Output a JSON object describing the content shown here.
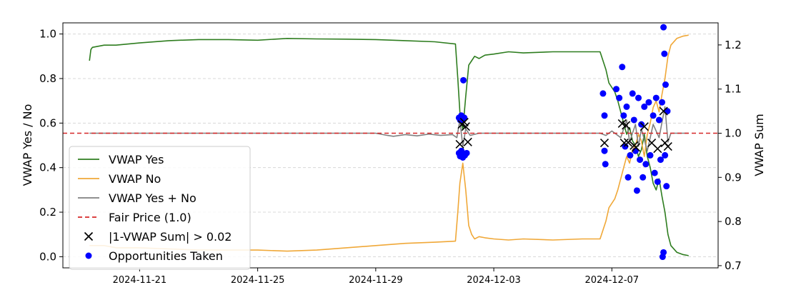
{
  "chart_data": {
    "type": "line",
    "title": "",
    "xlabel": "",
    "ylabel_left": "VWAP Yes / No",
    "ylabel_right": "VWAP Sum",
    "x_tick_labels": [
      "2024-11-21",
      "2024-11-25",
      "2024-11-29",
      "2024-12-03",
      "2024-12-07"
    ],
    "x_ticks_days": [
      0,
      4,
      8,
      12,
      16
    ],
    "x_domain_days": [
      -2.6,
      19.6
    ],
    "ylim_left": [
      -0.05,
      1.05
    ],
    "yticks_left": [
      0.0,
      0.2,
      0.4,
      0.6,
      0.8,
      1.0
    ],
    "ylim_right": [
      0.695,
      1.25
    ],
    "yticks_right": [
      0.7,
      0.8,
      0.9,
      1.0,
      1.1,
      1.2
    ],
    "grid": true,
    "legend_position": "lower-left",
    "colors": {
      "yes": "#2e7d1f",
      "no": "#f0a838",
      "sum": "#808080",
      "fair": "#d62728",
      "markers_x": "#000000",
      "markers_dot": "#0000ff"
    },
    "legend": [
      {
        "key": "yes",
        "label": "VWAP Yes",
        "style": "line"
      },
      {
        "key": "no",
        "label": "VWAP No",
        "style": "line"
      },
      {
        "key": "sum",
        "label": "VWAP Yes + No",
        "style": "line"
      },
      {
        "key": "fair",
        "label": "Fair Price (1.0)",
        "style": "dashed"
      },
      {
        "key": "markers_x",
        "label": "|1-VWAP Sum| > 0.02",
        "style": "x"
      },
      {
        "key": "markers_dot",
        "label": "Opportunities Taken",
        "style": "dot"
      }
    ],
    "series": [
      {
        "key": "yes",
        "axis": "left",
        "points": [
          [
            -1.7,
            0.88
          ],
          [
            -1.65,
            0.93
          ],
          [
            -1.6,
            0.94
          ],
          [
            -1.2,
            0.95
          ],
          [
            -0.8,
            0.95
          ],
          [
            0.0,
            0.96
          ],
          [
            1.0,
            0.97
          ],
          [
            2.0,
            0.975
          ],
          [
            3.0,
            0.975
          ],
          [
            4.0,
            0.972
          ],
          [
            5.0,
            0.98
          ],
          [
            6.0,
            0.978
          ],
          [
            7.0,
            0.977
          ],
          [
            8.0,
            0.975
          ],
          [
            9.0,
            0.97
          ],
          [
            10.0,
            0.965
          ],
          [
            10.7,
            0.955
          ],
          [
            10.78,
            0.8
          ],
          [
            10.85,
            0.65
          ],
          [
            10.95,
            0.57
          ],
          [
            11.05,
            0.72
          ],
          [
            11.15,
            0.86
          ],
          [
            11.25,
            0.88
          ],
          [
            11.35,
            0.9
          ],
          [
            11.5,
            0.89
          ],
          [
            11.7,
            0.905
          ],
          [
            12.0,
            0.91
          ],
          [
            12.5,
            0.92
          ],
          [
            13.0,
            0.915
          ],
          [
            14.0,
            0.92
          ],
          [
            15.0,
            0.92
          ],
          [
            15.6,
            0.92
          ],
          [
            15.7,
            0.88
          ],
          [
            15.8,
            0.84
          ],
          [
            15.9,
            0.78
          ],
          [
            16.0,
            0.76
          ],
          [
            16.1,
            0.74
          ],
          [
            16.2,
            0.7
          ],
          [
            16.3,
            0.65
          ],
          [
            16.4,
            0.6
          ],
          [
            16.5,
            0.55
          ],
          [
            16.6,
            0.58
          ],
          [
            16.7,
            0.52
          ],
          [
            16.8,
            0.5
          ],
          [
            16.9,
            0.45
          ],
          [
            17.0,
            0.48
          ],
          [
            17.1,
            0.55
          ],
          [
            17.2,
            0.45
          ],
          [
            17.3,
            0.4
          ],
          [
            17.4,
            0.33
          ],
          [
            17.5,
            0.3
          ],
          [
            17.6,
            0.35
          ],
          [
            17.7,
            0.27
          ],
          [
            17.8,
            0.2
          ],
          [
            17.9,
            0.1
          ],
          [
            18.0,
            0.05
          ],
          [
            18.2,
            0.02
          ],
          [
            18.4,
            0.01
          ],
          [
            18.6,
            0.005
          ]
        ]
      },
      {
        "key": "no",
        "axis": "left",
        "points": [
          [
            -1.7,
            0.05
          ],
          [
            -1.2,
            0.05
          ],
          [
            -0.8,
            0.04
          ],
          [
            0.0,
            0.04
          ],
          [
            1.0,
            0.035
          ],
          [
            2.0,
            0.03
          ],
          [
            3.0,
            0.03
          ],
          [
            4.0,
            0.03
          ],
          [
            5.0,
            0.025
          ],
          [
            6.0,
            0.03
          ],
          [
            7.0,
            0.04
          ],
          [
            8.0,
            0.05
          ],
          [
            9.0,
            0.06
          ],
          [
            10.0,
            0.065
          ],
          [
            10.7,
            0.07
          ],
          [
            10.78,
            0.2
          ],
          [
            10.85,
            0.33
          ],
          [
            10.95,
            0.42
          ],
          [
            11.05,
            0.3
          ],
          [
            11.15,
            0.14
          ],
          [
            11.25,
            0.1
          ],
          [
            11.35,
            0.08
          ],
          [
            11.5,
            0.09
          ],
          [
            11.7,
            0.085
          ],
          [
            12.0,
            0.08
          ],
          [
            12.5,
            0.075
          ],
          [
            13.0,
            0.08
          ],
          [
            14.0,
            0.075
          ],
          [
            15.0,
            0.08
          ],
          [
            15.6,
            0.08
          ],
          [
            15.7,
            0.12
          ],
          [
            15.8,
            0.16
          ],
          [
            15.9,
            0.22
          ],
          [
            16.0,
            0.24
          ],
          [
            16.1,
            0.26
          ],
          [
            16.2,
            0.3
          ],
          [
            16.3,
            0.35
          ],
          [
            16.4,
            0.4
          ],
          [
            16.5,
            0.45
          ],
          [
            16.6,
            0.42
          ],
          [
            16.7,
            0.48
          ],
          [
            16.8,
            0.5
          ],
          [
            16.9,
            0.55
          ],
          [
            17.0,
            0.52
          ],
          [
            17.1,
            0.45
          ],
          [
            17.2,
            0.55
          ],
          [
            17.3,
            0.6
          ],
          [
            17.4,
            0.67
          ],
          [
            17.5,
            0.7
          ],
          [
            17.6,
            0.65
          ],
          [
            17.7,
            0.73
          ],
          [
            17.8,
            0.8
          ],
          [
            17.9,
            0.9
          ],
          [
            18.0,
            0.95
          ],
          [
            18.2,
            0.98
          ],
          [
            18.4,
            0.99
          ],
          [
            18.6,
            0.995
          ]
        ]
      },
      {
        "key": "sum",
        "axis": "right",
        "points": [
          [
            -1.7,
            1.0
          ],
          [
            0.0,
            1.0
          ],
          [
            2.0,
            1.0
          ],
          [
            4.0,
            1.0
          ],
          [
            6.0,
            1.0
          ],
          [
            8.0,
            1.0
          ],
          [
            8.4,
            0.995
          ],
          [
            8.6,
            0.993
          ],
          [
            9.0,
            0.997
          ],
          [
            9.4,
            0.994
          ],
          [
            9.8,
            0.998
          ],
          [
            10.2,
            0.995
          ],
          [
            10.6,
            0.997
          ],
          [
            10.75,
            0.99
          ],
          [
            10.85,
            1.03
          ],
          [
            10.95,
            0.97
          ],
          [
            11.05,
            1.01
          ],
          [
            11.2,
            0.995
          ],
          [
            11.5,
            1.0
          ],
          [
            12.0,
            1.0
          ],
          [
            13.0,
            1.0
          ],
          [
            14.0,
            1.0
          ],
          [
            15.0,
            1.0
          ],
          [
            15.6,
            1.0
          ],
          [
            15.8,
            0.995
          ],
          [
            16.0,
            1.005
          ],
          [
            16.3,
            0.99
          ],
          [
            16.5,
            1.03
          ],
          [
            16.6,
            0.98
          ],
          [
            16.8,
            1.02
          ],
          [
            16.9,
            0.97
          ],
          [
            17.0,
            1.01
          ],
          [
            17.2,
            0.96
          ],
          [
            17.4,
            1.02
          ],
          [
            17.6,
            0.99
          ],
          [
            17.8,
            1.06
          ],
          [
            17.9,
            0.98
          ],
          [
            18.0,
            1.0
          ],
          [
            18.2,
            1.0
          ],
          [
            18.6,
            1.0
          ]
        ]
      }
    ],
    "fair_price": 1.0,
    "markers_threshold": [
      [
        10.85,
        0.975
      ],
      [
        10.92,
        1.02
      ],
      [
        11.0,
        1.025
      ],
      [
        11.05,
        1.015
      ],
      [
        11.12,
        0.98
      ],
      [
        15.75,
        0.978
      ],
      [
        16.35,
        1.022
      ],
      [
        16.42,
        0.978
      ],
      [
        16.48,
        1.018
      ],
      [
        16.55,
        0.979
      ],
      [
        16.75,
        0.972
      ],
      [
        16.82,
        0.968
      ],
      [
        17.1,
        1.015
      ],
      [
        17.35,
        0.978
      ],
      [
        17.55,
        0.965
      ],
      [
        17.75,
        1.05
      ],
      [
        17.8,
        0.978
      ],
      [
        17.9,
        0.97
      ]
    ],
    "markers_taken": [
      [
        10.82,
        1.035
      ],
      [
        10.86,
        1.03
      ],
      [
        10.9,
        1.04
      ],
      [
        10.95,
        1.03
      ],
      [
        11.0,
        1.035
      ],
      [
        10.82,
        0.955
      ],
      [
        10.86,
        0.948
      ],
      [
        10.9,
        0.96
      ],
      [
        10.95,
        0.945
      ],
      [
        10.97,
        1.12
      ],
      [
        11.02,
        0.95
      ],
      [
        11.08,
        0.955
      ],
      [
        15.7,
        1.09
      ],
      [
        15.75,
        1.04
      ],
      [
        15.75,
        0.96
      ],
      [
        15.78,
        0.93
      ],
      [
        16.15,
        1.1
      ],
      [
        16.25,
        1.08
      ],
      [
        16.35,
        1.15
      ],
      [
        16.4,
        1.04
      ],
      [
        16.45,
        0.97
      ],
      [
        16.5,
        1.06
      ],
      [
        16.55,
        0.9
      ],
      [
        16.62,
        0.95
      ],
      [
        16.7,
        1.09
      ],
      [
        16.75,
        1.03
      ],
      [
        16.8,
        0.96
      ],
      [
        16.85,
        0.87
      ],
      [
        16.9,
        1.08
      ],
      [
        16.95,
        0.94
      ],
      [
        17.0,
        1.02
      ],
      [
        17.05,
        0.9
      ],
      [
        17.1,
        1.06
      ],
      [
        17.15,
        0.93
      ],
      [
        17.25,
        1.07
      ],
      [
        17.3,
        0.95
      ],
      [
        17.4,
        1.04
      ],
      [
        17.45,
        0.91
      ],
      [
        17.5,
        1.08
      ],
      [
        17.55,
        0.89
      ],
      [
        17.6,
        1.03
      ],
      [
        17.65,
        0.94
      ],
      [
        17.7,
        1.07
      ],
      [
        17.72,
        0.72
      ],
      [
        17.75,
        1.24
      ],
      [
        17.78,
        1.18
      ],
      [
        17.8,
        0.95
      ],
      [
        17.82,
        1.11
      ],
      [
        17.85,
        0.88
      ],
      [
        17.88,
        1.05
      ],
      [
        17.75,
        0.73
      ]
    ]
  }
}
